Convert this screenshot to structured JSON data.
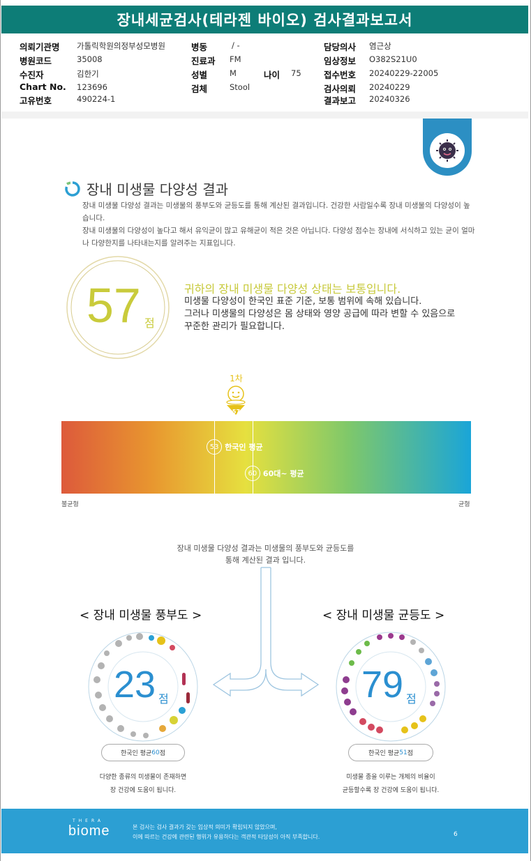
{
  "report": {
    "title": "장내세균검사(테라젠 바이오) 검사결과보고서"
  },
  "info": {
    "hospital_label": "의뢰기관명",
    "hospital": "가톨릭학원의정부성모병원",
    "code_label": "병원코드",
    "code": "35008",
    "patient_label": "수진자",
    "patient": "김한기",
    "chart_label": "Chart No.",
    "chart": "123696",
    "unique_label": "고유번호",
    "unique": "490224-1",
    "ward_label": "병동",
    "ward": "/ -",
    "dept_label": "진료과",
    "dept": "FM",
    "sex_label": "성별",
    "sex": "M",
    "age_label": "나이",
    "age": "75",
    "specimen_label": "검체",
    "specimen": "Stool",
    "doctor_label": "담당의사",
    "doctor": "염근상",
    "clinical_label": "임상정보",
    "clinical": "O382S21U0",
    "receipt_label": "접수번호",
    "receipt": "20240229-22005",
    "request_label": "검사의뢰",
    "request": "20240229",
    "result_label": "결과보고",
    "result": "20240326"
  },
  "diversity": {
    "section_title": "장내 미생물 다양성 결과",
    "desc_1": "장내 미생물 다양성 결과는 미생물의 풍부도와 균등도를 통해 계산된 결과입니다. 건강한 사람일수록 장내 미생물의 다양성이 높습니다.",
    "desc_2": "장내 미생물의 다양성이 높다고 해서 유익균이 많고 유해균이 적은 것은 아닙니다. 다양성 점수는 장내에 서식하고 있는 균이 얼마나 다양한지를 나타내는지를 알려주는 지표입니다.",
    "score": "57",
    "score_unit": "점",
    "status_head": "귀하의 장내 미생물 다양성 상태는 보통입니다.",
    "status_1": "미생물 다양성이 한국인 표준 기준, 보통 범위에 속해 있습니다.",
    "status_2": "그러나 미생물의 다양성은 몸 상태와 영양 공급에 따라 변할 수 있음으로",
    "status_3": "꾸준한 관리가 필요합니다."
  },
  "bar": {
    "marker_label": "1차",
    "marker_value": "57",
    "marker_score": 57,
    "korean_avg_value": "53",
    "korean_avg_label": "한국인 평균",
    "korean_avg_score": 53,
    "sixties_avg_value": "60",
    "sixties_avg_label": "60대~ 평균",
    "sixties_avg_score": 60,
    "scale_min": 25,
    "scale_max": 100,
    "left_label": "불균형",
    "right_label": "균형",
    "colors": {
      "marker": "#e6c21a",
      "bar_start": "#dd5a3b",
      "bar_end": "#1aa5d8"
    }
  },
  "composition": {
    "text_1": "장내 미생물 다양성 결과는 미생물의 풍부도와 균등도를",
    "text_2": "통해 계산된 결과 입니다.",
    "richness": {
      "title": "< 장내 미생물 풍부도 >",
      "score": "23",
      "unit": "점",
      "avg_prefix": "한국인 평균 ",
      "avg_value": "60",
      "avg_suffix": "점",
      "note_1": "다양한 종류의 미생물이 존재하면",
      "note_2": "장 건강에 도움이 됩니다."
    },
    "evenness": {
      "title": "< 장내 미생물 균등도 >",
      "score": "79",
      "unit": "점",
      "avg_prefix": "한국인 평균 ",
      "avg_value": "51",
      "avg_suffix": "점",
      "note_1": "미생물 종을 이루는 개체의 비율이",
      "note_2": "균등할수록 장 건강에 도움이 됩니다."
    }
  },
  "footer": {
    "logo_top": "THERA",
    "logo": "biome",
    "line_1": "본 검사는 검사 결과가 갖는 임상적 의미가 확립되지 않았으며,",
    "line_2": "이에 따르는 건강에 관련된 행위가 유용하다는 객관적 타당성이 아직 부족합니다.",
    "page": "6"
  }
}
